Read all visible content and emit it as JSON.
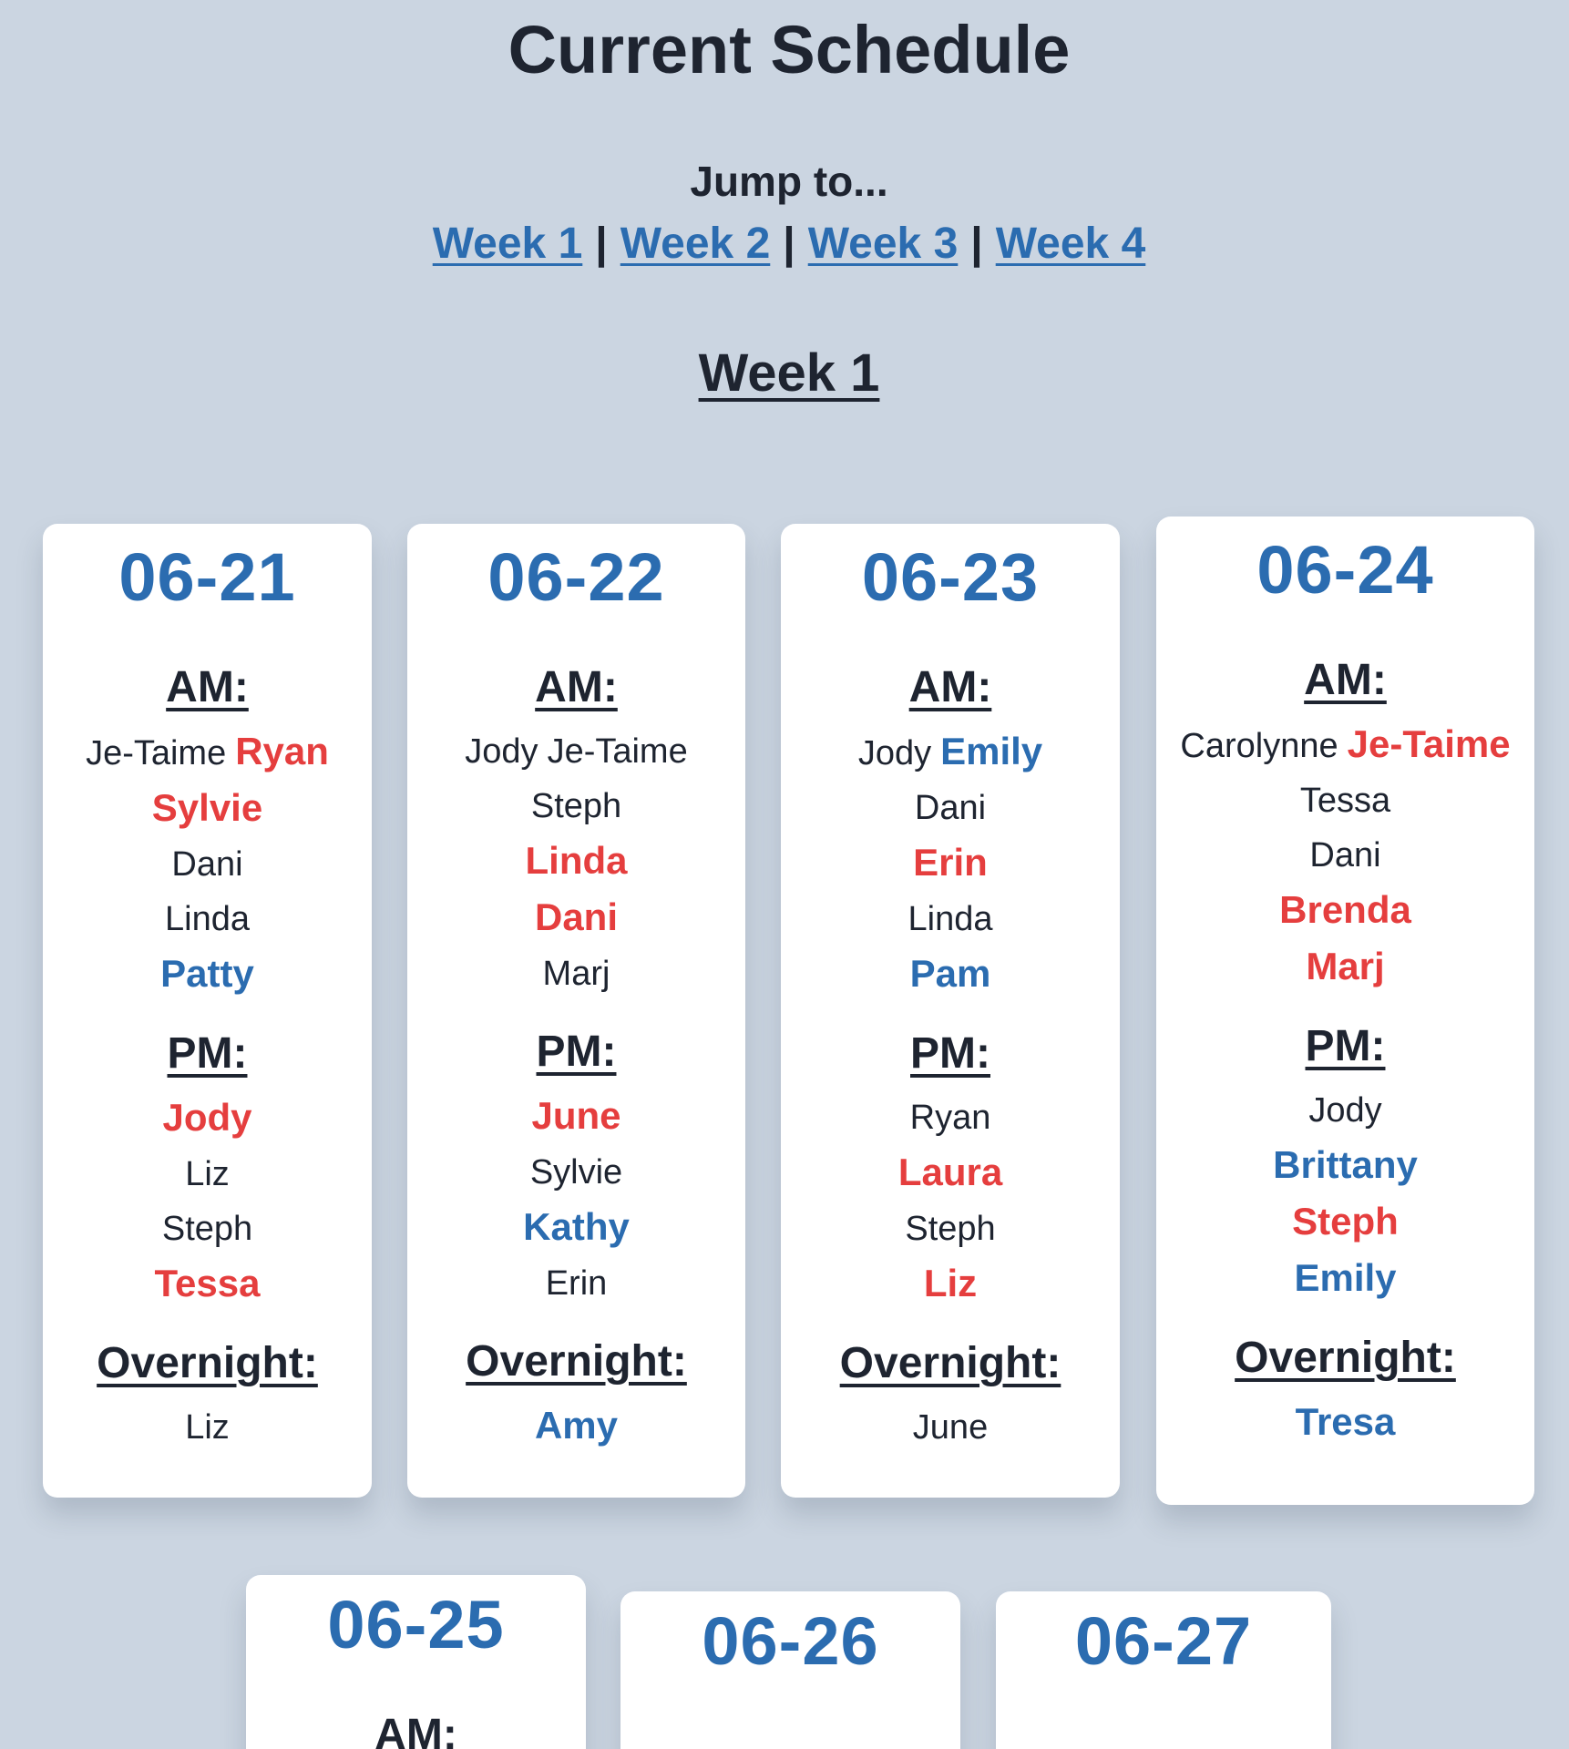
{
  "header": {
    "title": "Current Schedule",
    "jump_label": "Jump to...",
    "jump_links": [
      "Week 1",
      "Week 2",
      "Week 3",
      "Week 4"
    ],
    "separator": "|"
  },
  "week": {
    "heading": "Week 1",
    "shift_labels": {
      "am": "AM:",
      "pm": "PM:",
      "overnight": "Overnight:"
    },
    "days": [
      {
        "date": "06-21",
        "am": [
          [
            {
              "name": "Je-Taime",
              "style": "normal"
            },
            {
              "name": "Ryan",
              "style": "red"
            }
          ],
          [
            {
              "name": "Sylvie",
              "style": "red"
            }
          ],
          [
            {
              "name": "Dani",
              "style": "normal"
            }
          ],
          [
            {
              "name": "Linda",
              "style": "normal"
            }
          ],
          [
            {
              "name": "Patty",
              "style": "blue"
            }
          ]
        ],
        "pm": [
          [
            {
              "name": "Jody",
              "style": "red"
            }
          ],
          [
            {
              "name": "Liz",
              "style": "normal"
            }
          ],
          [
            {
              "name": "Steph",
              "style": "normal"
            }
          ],
          [
            {
              "name": "Tessa",
              "style": "red"
            }
          ]
        ],
        "overnight": [
          [
            {
              "name": "Liz",
              "style": "normal"
            }
          ]
        ]
      },
      {
        "date": "06-22",
        "am": [
          [
            {
              "name": "Jody",
              "style": "normal"
            },
            {
              "name": "Je-Taime",
              "style": "normal"
            }
          ],
          [
            {
              "name": "Steph",
              "style": "normal"
            }
          ],
          [
            {
              "name": "Linda",
              "style": "red"
            }
          ],
          [
            {
              "name": "Dani",
              "style": "red"
            }
          ],
          [
            {
              "name": "Marj",
              "style": "normal"
            }
          ]
        ],
        "pm": [
          [
            {
              "name": "June",
              "style": "red"
            }
          ],
          [
            {
              "name": "Sylvie",
              "style": "normal"
            }
          ],
          [
            {
              "name": "Kathy",
              "style": "blue"
            }
          ],
          [
            {
              "name": "Erin",
              "style": "normal"
            }
          ]
        ],
        "overnight": [
          [
            {
              "name": "Amy",
              "style": "blue"
            }
          ]
        ]
      },
      {
        "date": "06-23",
        "am": [
          [
            {
              "name": "Jody",
              "style": "normal"
            },
            {
              "name": "Emily",
              "style": "blue"
            }
          ],
          [
            {
              "name": "Dani",
              "style": "normal"
            }
          ],
          [
            {
              "name": "Erin",
              "style": "red"
            }
          ],
          [
            {
              "name": "Linda",
              "style": "normal"
            }
          ],
          [
            {
              "name": "Pam",
              "style": "blue"
            }
          ]
        ],
        "pm": [
          [
            {
              "name": "Ryan",
              "style": "normal"
            }
          ],
          [
            {
              "name": "Laura",
              "style": "red"
            }
          ],
          [
            {
              "name": "Steph",
              "style": "normal"
            }
          ],
          [
            {
              "name": "Liz",
              "style": "red"
            }
          ]
        ],
        "overnight": [
          [
            {
              "name": "June",
              "style": "normal"
            }
          ]
        ]
      },
      {
        "date": "06-24",
        "am": [
          [
            {
              "name": "Carolynne",
              "style": "normal"
            },
            {
              "name": "Je-Taime",
              "style": "red"
            }
          ],
          [
            {
              "name": "Tessa",
              "style": "normal"
            }
          ],
          [
            {
              "name": "Dani",
              "style": "normal"
            }
          ],
          [
            {
              "name": "Brenda",
              "style": "red"
            }
          ],
          [
            {
              "name": "Marj",
              "style": "red"
            }
          ]
        ],
        "pm": [
          [
            {
              "name": "Jody",
              "style": "normal"
            }
          ],
          [
            {
              "name": "Brittany",
              "style": "blue"
            }
          ],
          [
            {
              "name": "Steph",
              "style": "red"
            }
          ],
          [
            {
              "name": "Emily",
              "style": "blue"
            }
          ]
        ],
        "overnight": [
          [
            {
              "name": "Tresa",
              "style": "blue"
            }
          ]
        ]
      },
      {
        "date": "06-25",
        "am_visible": "AM:"
      },
      {
        "date": "06-26"
      },
      {
        "date": "06-27"
      }
    ]
  },
  "colors": {
    "background": "#cbd5e1",
    "link_blue": "#2b6cb0",
    "highlight_red": "#e53e3e",
    "text_dark": "#1e2430"
  }
}
